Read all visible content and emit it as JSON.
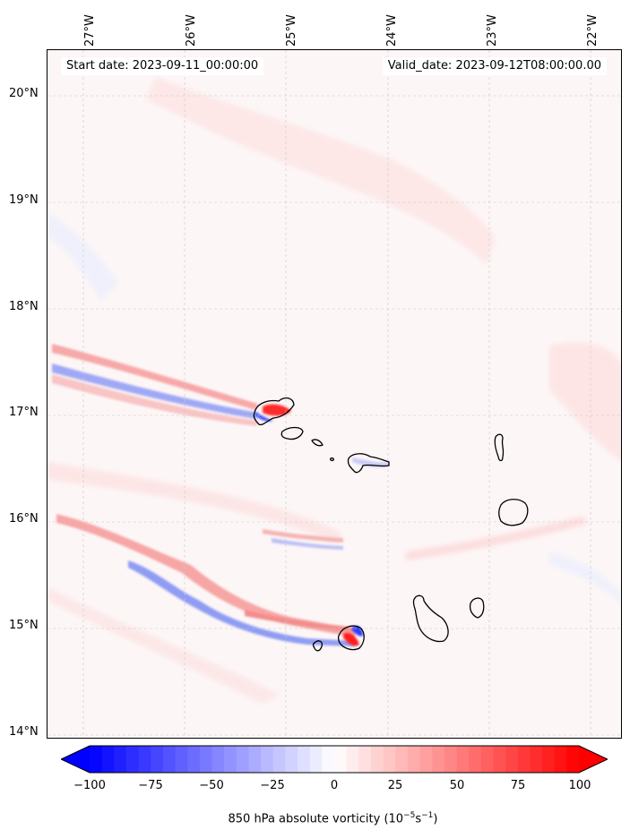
{
  "map": {
    "start_date": "Start date: 2023-09-11_00:00:00",
    "valid_date": "Valid_date: 2023-09-12T08:00:00.00",
    "longitude_labels": [
      "27°W",
      "26°W",
      "25°W",
      "24°W",
      "23°W",
      "22°W"
    ],
    "latitude_labels": [
      "20°N",
      "19°N",
      "18°N",
      "17°N",
      "16°N",
      "15°N",
      "14°N"
    ],
    "field": "850 hPa absolute vorticity",
    "islands": [
      "Santo Antão",
      "São Vicente",
      "Santa Luzia",
      "São Nicolau",
      "Sal",
      "Boa Vista",
      "Maio",
      "Santiago",
      "Fogo",
      "Brava"
    ]
  },
  "colorbar": {
    "ticks": [
      "−100",
      "−75",
      "−50",
      "−25",
      "0",
      "25",
      "50",
      "75",
      "100"
    ],
    "label_text": "850 hPa absolute vorticity (10",
    "label_exp1": "−5",
    "label_mid": "s",
    "label_exp2": "−1",
    "label_close": ")",
    "min_color": "#0000ff",
    "mid_color": "#ffffff",
    "max_color": "#ff0000"
  }
}
